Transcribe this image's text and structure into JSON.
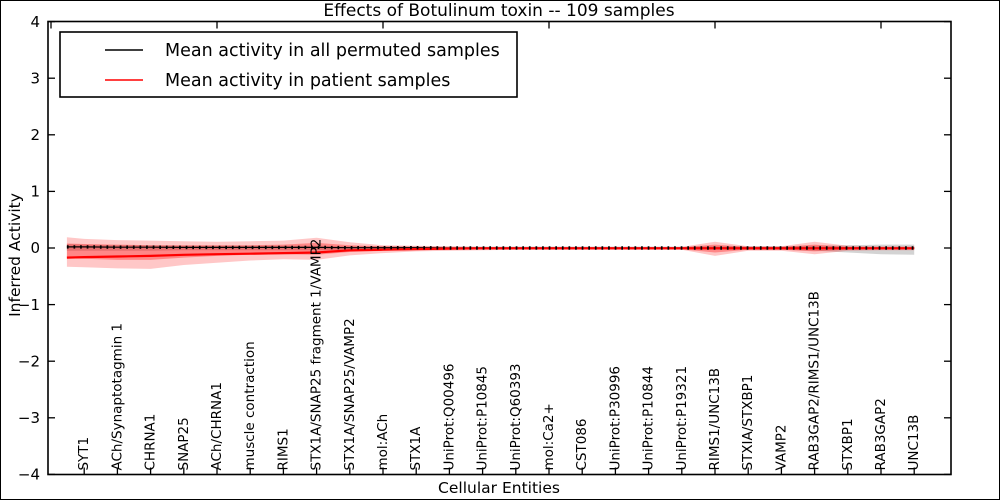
{
  "chart_data": {
    "type": "line",
    "title": "Effects of Botulinum toxin -- 109 samples",
    "xlabel": "Cellular Entities",
    "ylabel": "Inferred Activity",
    "ylim": [
      -4,
      4
    ],
    "yticks": [
      4,
      3,
      2,
      1,
      0,
      -1,
      -2,
      -3,
      -4
    ],
    "ytick_labels": [
      "4",
      "3",
      "2",
      "1",
      "0",
      "−1",
      "−2",
      "−3",
      "−4"
    ],
    "grid": false,
    "legend_position": "upper left",
    "legend": [
      {
        "label": "Mean activity in all permuted samples",
        "color": "#000000"
      },
      {
        "label": "Mean activity in patient samples",
        "color": "#ff0000"
      }
    ],
    "categories": [
      "SYT1",
      "ACh/Synaptotagmin 1",
      "CHRNA1",
      "SNAP25",
      "ACh/CHRNA1",
      "muscle contraction",
      "RIMS1",
      "STX1A/SNAP25 fragment 1/VAMP2",
      "STX1A/SNAP25/VAMP2",
      "mol:ACh",
      "STX1A",
      "UniProt:Q00496",
      "UniProt:P10845",
      "UniProt:Q60393",
      "mol:Ca2+",
      "CST086",
      "UniProt:P30996",
      "UniProt:P10844",
      "UniProt:P19321",
      "RIMS1/UNC13B",
      "STXIA/STXBP1",
      "VAMP2",
      "RAB3GAP2/RIMS1/UNC13B",
      "STXBP1",
      "RAB3GAP2",
      "UNC13B"
    ],
    "x": [
      2.4,
      5,
      10,
      15,
      20,
      25,
      30,
      35,
      40,
      45,
      50,
      55,
      60,
      65,
      70,
      75,
      80,
      85,
      90,
      95,
      100,
      105,
      110,
      115,
      120,
      125,
      130
    ],
    "category_x": [
      5,
      10,
      15,
      20,
      25,
      30,
      35,
      40,
      45,
      50,
      55,
      60,
      65,
      70,
      75,
      80,
      85,
      90,
      95,
      100,
      105,
      110,
      115,
      120,
      125,
      130
    ],
    "top_ticks_x": [
      0,
      25,
      50,
      75,
      100,
      125
    ],
    "series": [
      {
        "name": "Mean activity in all permuted samples",
        "color": "#000000",
        "values": [
          0.02,
          0.02,
          0.015,
          0.015,
          0.01,
          0.01,
          0.01,
          0.01,
          0.01,
          0.005,
          0.005,
          0.005,
          0,
          0,
          0,
          0,
          0,
          0,
          0,
          0,
          0,
          0,
          0,
          0,
          0,
          0,
          0
        ]
      },
      {
        "name": "Mean activity in patient samples",
        "color": "#ff0000",
        "values": [
          -0.17,
          -0.16,
          -0.15,
          -0.14,
          -0.12,
          -0.11,
          -0.1,
          -0.09,
          -0.08,
          -0.04,
          -0.03,
          -0.02,
          -0.01,
          -0.005,
          -0.005,
          -0.005,
          -0.005,
          -0.005,
          -0.005,
          -0.005,
          -0.005,
          -0.005,
          -0.005,
          -0.005,
          -0.005,
          -0.005,
          -0.005
        ]
      }
    ],
    "bands": [
      {
        "name": "permuted-ci",
        "fill": "rgba(110,110,110,0.30)",
        "upper": [
          0.07,
          0.06,
          0.05,
          0.05,
          0.04,
          0.04,
          0.04,
          0.04,
          0.04,
          0.03,
          0.03,
          0.03,
          0.025,
          0.025,
          0.025,
          0.025,
          0.025,
          0.025,
          0.025,
          0.025,
          0.03,
          0.03,
          0.03,
          0.04,
          0.05,
          0.06,
          0.06
        ],
        "lower": [
          -0.05,
          -0.05,
          -0.05,
          -0.05,
          -0.04,
          -0.04,
          -0.04,
          -0.04,
          -0.04,
          -0.03,
          -0.03,
          -0.03,
          -0.025,
          -0.025,
          -0.025,
          -0.025,
          -0.025,
          -0.025,
          -0.025,
          -0.025,
          -0.03,
          -0.03,
          -0.03,
          -0.05,
          -0.08,
          -0.11,
          -0.12
        ]
      },
      {
        "name": "patient-ci-outer",
        "fill": "rgba(255,0,0,0.22)",
        "upper": [
          0.19,
          0.16,
          0.14,
          0.13,
          0.12,
          0.11,
          0.12,
          0.13,
          0.18,
          0.1,
          0.05,
          0.04,
          0.03,
          0.02,
          0.02,
          0.02,
          0.02,
          0.02,
          0.02,
          0.02,
          0.11,
          0.03,
          0.03,
          0.11,
          0.04,
          0.03,
          0.03
        ],
        "lower": [
          -0.33,
          -0.34,
          -0.36,
          -0.37,
          -0.3,
          -0.26,
          -0.22,
          -0.2,
          -0.21,
          -0.13,
          -0.09,
          -0.06,
          -0.05,
          -0.04,
          -0.03,
          -0.03,
          -0.03,
          -0.03,
          -0.03,
          -0.03,
          -0.14,
          -0.05,
          -0.05,
          -0.11,
          -0.05,
          -0.04,
          -0.04
        ]
      },
      {
        "name": "patient-ci-inner",
        "fill": "rgba(255,0,0,0.32)",
        "upper": [
          0.08,
          0.07,
          0.06,
          0.05,
          0.05,
          0.05,
          0.05,
          0.06,
          0.09,
          0.05,
          0.03,
          0.02,
          0.015,
          0.015,
          0.015,
          0.015,
          0.015,
          0.015,
          0.015,
          0.015,
          0.06,
          0.02,
          0.02,
          0.06,
          0.02,
          0.015,
          0.015
        ],
        "lower": [
          -0.18,
          -0.19,
          -0.21,
          -0.21,
          -0.17,
          -0.14,
          -0.12,
          -0.11,
          -0.12,
          -0.07,
          -0.05,
          -0.035,
          -0.025,
          -0.025,
          -0.025,
          -0.025,
          -0.025,
          -0.025,
          -0.025,
          -0.025,
          -0.08,
          -0.03,
          -0.03,
          -0.06,
          -0.03,
          -0.02,
          -0.02
        ]
      }
    ]
  }
}
